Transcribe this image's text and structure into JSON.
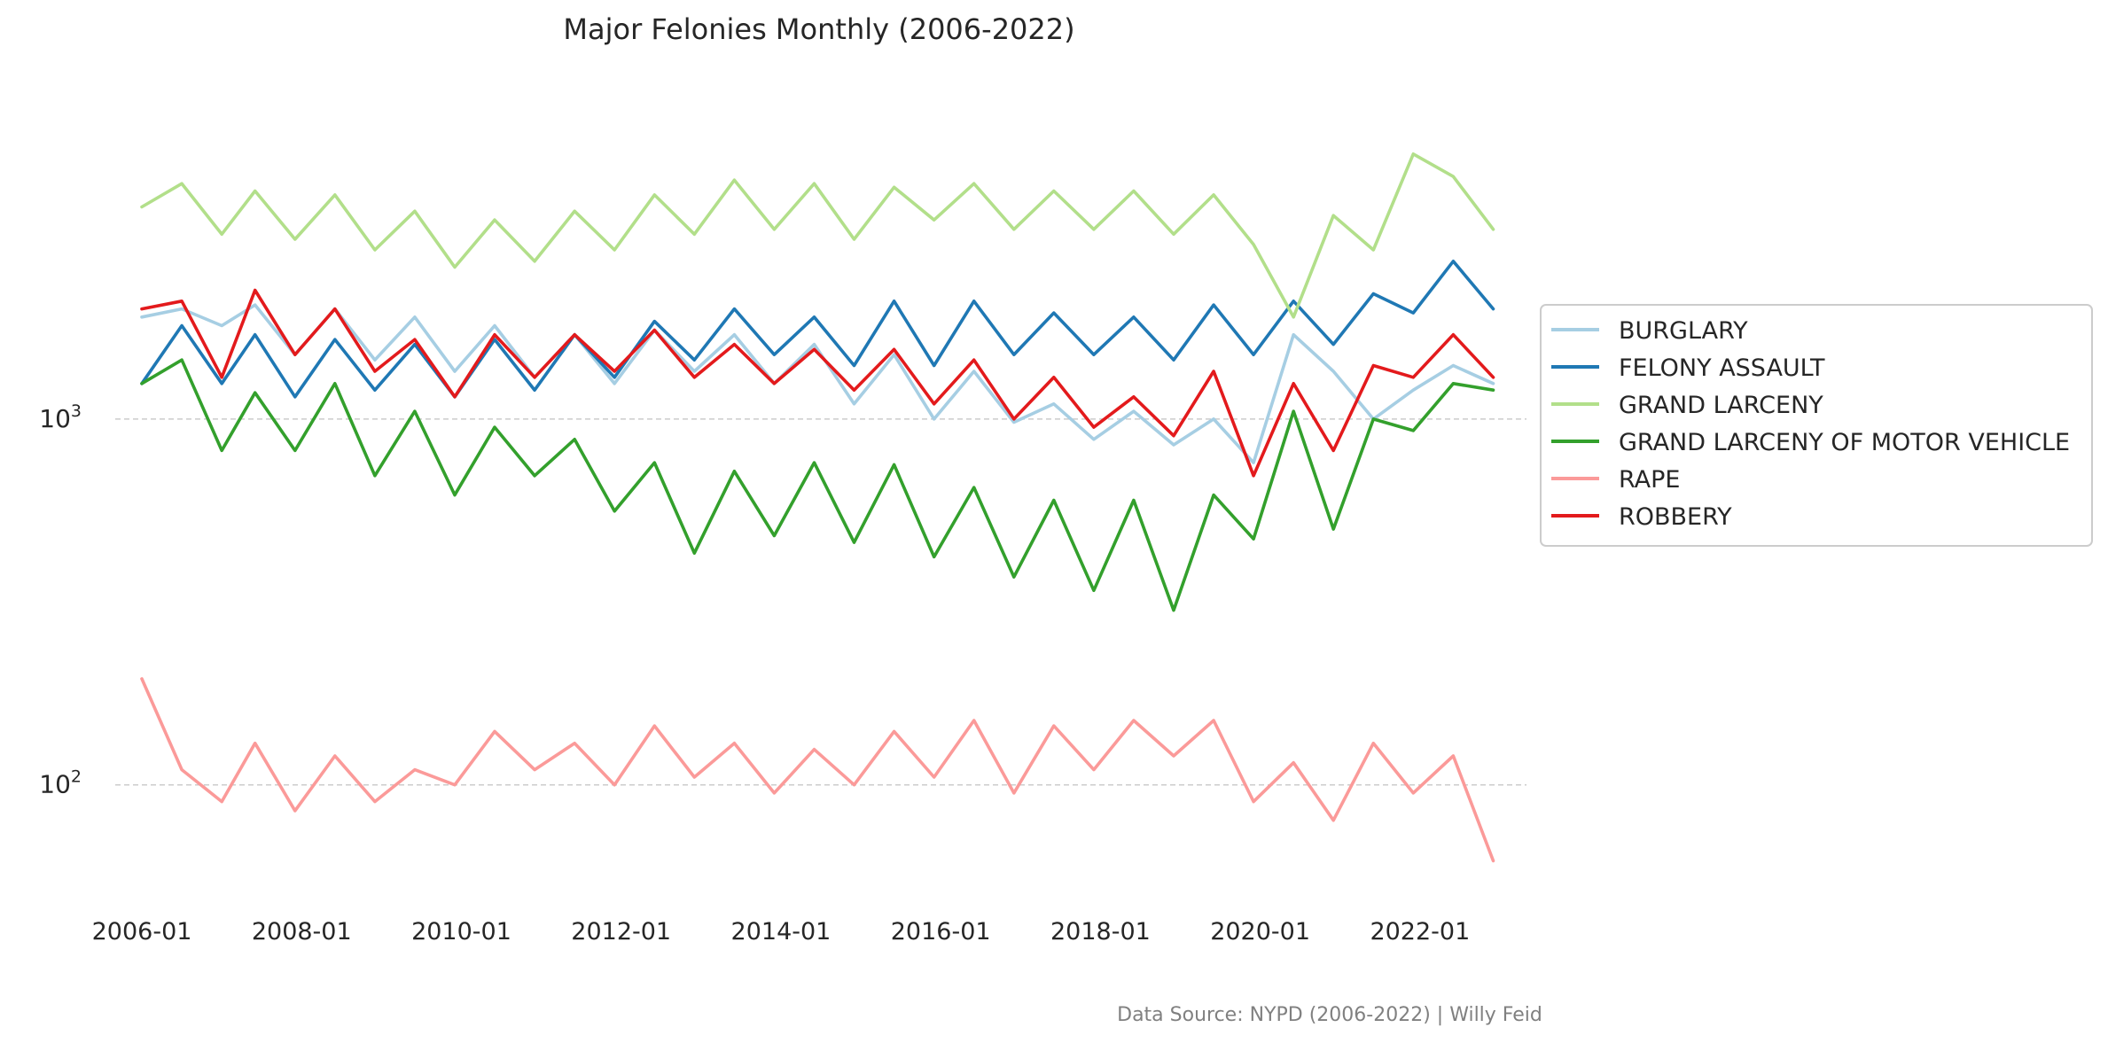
{
  "chart_data": {
    "type": "line",
    "title": "Major Felonies Monthly (2006-2022)",
    "xlabel": "",
    "ylabel": "",
    "y_scale": "log",
    "ylim": [
      50,
      10000
    ],
    "y_ticks": [
      100,
      1000
    ],
    "y_tick_labels": [
      {
        "base": "10",
        "exp": "2"
      },
      {
        "base": "10",
        "exp": "3"
      }
    ],
    "x_ticks": [
      "2006-01",
      "2008-01",
      "2010-01",
      "2012-01",
      "2014-01",
      "2016-01",
      "2018-01",
      "2020-01",
      "2022-01"
    ],
    "x_range": [
      "2005-09",
      "2023-05"
    ],
    "grid": "horizontal dashed at y ticks",
    "legend_position": "right",
    "source": "Data Source: NYPD (2006-2022) | Willy Feid",
    "series": [
      {
        "name": "BURGLARY",
        "color": "#a6cee3",
        "points": [
          [
            "2006-01",
            1900
          ],
          [
            "2006-07",
            2000
          ],
          [
            "2007-01",
            1800
          ],
          [
            "2007-06",
            2050
          ],
          [
            "2007-12",
            1500
          ],
          [
            "2008-06",
            2000
          ],
          [
            "2008-12",
            1450
          ],
          [
            "2009-06",
            1900
          ],
          [
            "2009-12",
            1350
          ],
          [
            "2010-06",
            1800
          ],
          [
            "2010-12",
            1300
          ],
          [
            "2011-06",
            1700
          ],
          [
            "2011-12",
            1250
          ],
          [
            "2012-06",
            1750
          ],
          [
            "2012-12",
            1350
          ],
          [
            "2013-06",
            1700
          ],
          [
            "2013-12",
            1250
          ],
          [
            "2014-06",
            1600
          ],
          [
            "2014-12",
            1100
          ],
          [
            "2015-06",
            1500
          ],
          [
            "2015-12",
            1000
          ],
          [
            "2016-06",
            1350
          ],
          [
            "2016-12",
            980
          ],
          [
            "2017-06",
            1100
          ],
          [
            "2017-12",
            880
          ],
          [
            "2018-06",
            1050
          ],
          [
            "2018-12",
            850
          ],
          [
            "2019-06",
            1000
          ],
          [
            "2019-12",
            760
          ],
          [
            "2020-06",
            1700
          ],
          [
            "2020-12",
            1350
          ],
          [
            "2021-06",
            1000
          ],
          [
            "2021-12",
            1200
          ],
          [
            "2022-06",
            1400
          ],
          [
            "2022-12",
            1250
          ]
        ]
      },
      {
        "name": "FELONY ASSAULT",
        "color": "#1f78b4",
        "points": [
          [
            "2006-01",
            1250
          ],
          [
            "2006-07",
            1800
          ],
          [
            "2007-01",
            1250
          ],
          [
            "2007-06",
            1700
          ],
          [
            "2007-12",
            1150
          ],
          [
            "2008-06",
            1650
          ],
          [
            "2008-12",
            1200
          ],
          [
            "2009-06",
            1600
          ],
          [
            "2009-12",
            1150
          ],
          [
            "2010-06",
            1650
          ],
          [
            "2010-12",
            1200
          ],
          [
            "2011-06",
            1700
          ],
          [
            "2011-12",
            1300
          ],
          [
            "2012-06",
            1850
          ],
          [
            "2012-12",
            1450
          ],
          [
            "2013-06",
            2000
          ],
          [
            "2013-12",
            1500
          ],
          [
            "2014-06",
            1900
          ],
          [
            "2014-12",
            1400
          ],
          [
            "2015-06",
            2100
          ],
          [
            "2015-12",
            1400
          ],
          [
            "2016-06",
            2100
          ],
          [
            "2016-12",
            1500
          ],
          [
            "2017-06",
            1950
          ],
          [
            "2017-12",
            1500
          ],
          [
            "2018-06",
            1900
          ],
          [
            "2018-12",
            1450
          ],
          [
            "2019-06",
            2050
          ],
          [
            "2019-12",
            1500
          ],
          [
            "2020-06",
            2100
          ],
          [
            "2020-12",
            1600
          ],
          [
            "2021-06",
            2200
          ],
          [
            "2021-12",
            1950
          ],
          [
            "2022-06",
            2700
          ],
          [
            "2022-12",
            2000
          ]
        ]
      },
      {
        "name": "GRAND LARCENY",
        "color": "#b2df8a",
        "points": [
          [
            "2006-01",
            3800
          ],
          [
            "2006-07",
            4400
          ],
          [
            "2007-01",
            3200
          ],
          [
            "2007-06",
            4200
          ],
          [
            "2007-12",
            3100
          ],
          [
            "2008-06",
            4100
          ],
          [
            "2008-12",
            2900
          ],
          [
            "2009-06",
            3700
          ],
          [
            "2009-12",
            2600
          ],
          [
            "2010-06",
            3500
          ],
          [
            "2010-12",
            2700
          ],
          [
            "2011-06",
            3700
          ],
          [
            "2011-12",
            2900
          ],
          [
            "2012-06",
            4100
          ],
          [
            "2012-12",
            3200
          ],
          [
            "2013-06",
            4500
          ],
          [
            "2013-12",
            3300
          ],
          [
            "2014-06",
            4400
          ],
          [
            "2014-12",
            3100
          ],
          [
            "2015-06",
            4300
          ],
          [
            "2015-12",
            3500
          ],
          [
            "2016-06",
            4400
          ],
          [
            "2016-12",
            3300
          ],
          [
            "2017-06",
            4200
          ],
          [
            "2017-12",
            3300
          ],
          [
            "2018-06",
            4200
          ],
          [
            "2018-12",
            3200
          ],
          [
            "2019-06",
            4100
          ],
          [
            "2019-12",
            3000
          ],
          [
            "2020-06",
            1900
          ],
          [
            "2020-12",
            3600
          ],
          [
            "2021-06",
            2900
          ],
          [
            "2021-12",
            5300
          ],
          [
            "2022-06",
            4600
          ],
          [
            "2022-12",
            3300
          ]
        ]
      },
      {
        "name": "GRAND LARCENY OF MOTOR VEHICLE",
        "color": "#33a02c",
        "points": [
          [
            "2006-01",
            1250
          ],
          [
            "2006-07",
            1450
          ],
          [
            "2007-01",
            820
          ],
          [
            "2007-06",
            1180
          ],
          [
            "2007-12",
            820
          ],
          [
            "2008-06",
            1250
          ],
          [
            "2008-12",
            700
          ],
          [
            "2009-06",
            1050
          ],
          [
            "2009-12",
            620
          ],
          [
            "2010-06",
            950
          ],
          [
            "2010-12",
            700
          ],
          [
            "2011-06",
            880
          ],
          [
            "2011-12",
            560
          ],
          [
            "2012-06",
            760
          ],
          [
            "2012-12",
            430
          ],
          [
            "2013-06",
            720
          ],
          [
            "2013-12",
            480
          ],
          [
            "2014-06",
            760
          ],
          [
            "2014-12",
            460
          ],
          [
            "2015-06",
            750
          ],
          [
            "2015-12",
            420
          ],
          [
            "2016-06",
            650
          ],
          [
            "2016-12",
            370
          ],
          [
            "2017-06",
            600
          ],
          [
            "2017-12",
            340
          ],
          [
            "2018-06",
            600
          ],
          [
            "2018-12",
            300
          ],
          [
            "2019-06",
            620
          ],
          [
            "2019-12",
            470
          ],
          [
            "2020-06",
            1050
          ],
          [
            "2020-12",
            500
          ],
          [
            "2021-06",
            1000
          ],
          [
            "2021-12",
            930
          ],
          [
            "2022-06",
            1250
          ],
          [
            "2022-12",
            1200
          ]
        ]
      },
      {
        "name": "RAPE",
        "color": "#fb9a99",
        "points": [
          [
            "2006-01",
            195
          ],
          [
            "2006-07",
            110
          ],
          [
            "2007-01",
            90
          ],
          [
            "2007-06",
            130
          ],
          [
            "2007-12",
            85
          ],
          [
            "2008-06",
            120
          ],
          [
            "2008-12",
            90
          ],
          [
            "2009-06",
            110
          ],
          [
            "2009-12",
            100
          ],
          [
            "2010-06",
            140
          ],
          [
            "2010-12",
            110
          ],
          [
            "2011-06",
            130
          ],
          [
            "2011-12",
            100
          ],
          [
            "2012-06",
            145
          ],
          [
            "2012-12",
            105
          ],
          [
            "2013-06",
            130
          ],
          [
            "2013-12",
            95
          ],
          [
            "2014-06",
            125
          ],
          [
            "2014-12",
            100
          ],
          [
            "2015-06",
            140
          ],
          [
            "2015-12",
            105
          ],
          [
            "2016-06",
            150
          ],
          [
            "2016-12",
            95
          ],
          [
            "2017-06",
            145
          ],
          [
            "2017-12",
            110
          ],
          [
            "2018-06",
            150
          ],
          [
            "2018-12",
            120
          ],
          [
            "2019-06",
            150
          ],
          [
            "2019-12",
            90
          ],
          [
            "2020-06",
            115
          ],
          [
            "2020-12",
            80
          ],
          [
            "2021-06",
            130
          ],
          [
            "2021-12",
            95
          ],
          [
            "2022-06",
            120
          ],
          [
            "2022-12",
            62
          ]
        ]
      },
      {
        "name": "ROBBERY",
        "color": "#e31a1c",
        "points": [
          [
            "2006-01",
            2000
          ],
          [
            "2006-07",
            2100
          ],
          [
            "2007-01",
            1300
          ],
          [
            "2007-06",
            2250
          ],
          [
            "2007-12",
            1500
          ],
          [
            "2008-06",
            2000
          ],
          [
            "2008-12",
            1350
          ],
          [
            "2009-06",
            1650
          ],
          [
            "2009-12",
            1150
          ],
          [
            "2010-06",
            1700
          ],
          [
            "2010-12",
            1300
          ],
          [
            "2011-06",
            1700
          ],
          [
            "2011-12",
            1350
          ],
          [
            "2012-06",
            1750
          ],
          [
            "2012-12",
            1300
          ],
          [
            "2013-06",
            1600
          ],
          [
            "2013-12",
            1250
          ],
          [
            "2014-06",
            1550
          ],
          [
            "2014-12",
            1200
          ],
          [
            "2015-06",
            1550
          ],
          [
            "2015-12",
            1100
          ],
          [
            "2016-06",
            1450
          ],
          [
            "2016-12",
            1000
          ],
          [
            "2017-06",
            1300
          ],
          [
            "2017-12",
            950
          ],
          [
            "2018-06",
            1150
          ],
          [
            "2018-12",
            900
          ],
          [
            "2019-06",
            1350
          ],
          [
            "2019-12",
            700
          ],
          [
            "2020-06",
            1250
          ],
          [
            "2020-12",
            820
          ],
          [
            "2021-06",
            1400
          ],
          [
            "2021-12",
            1300
          ],
          [
            "2022-06",
            1700
          ],
          [
            "2022-12",
            1300
          ]
        ]
      }
    ]
  }
}
